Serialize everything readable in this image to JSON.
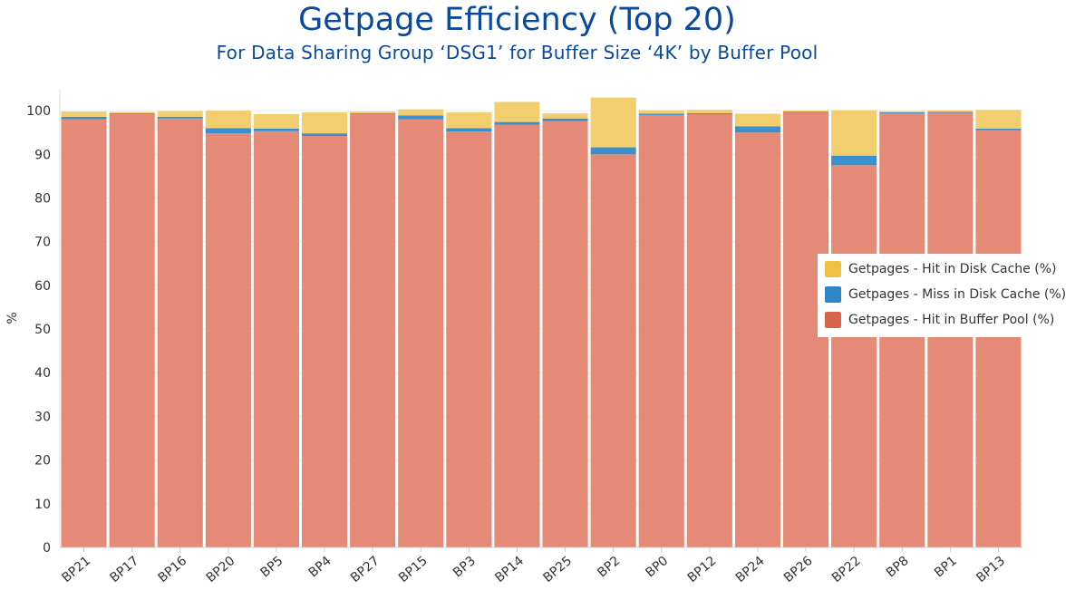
{
  "chart_data": {
    "type": "bar",
    "stacked": true,
    "title": "Getpage Efficiency (Top 20)",
    "subtitle": "For Data Sharing Group ‘DSG1’ for Buffer Size ‘4K’ by Buffer Pool",
    "ylabel": "%",
    "xlabel": "",
    "ylim": [
      0,
      105
    ],
    "yticks": [
      0,
      10,
      20,
      30,
      40,
      50,
      60,
      70,
      80,
      90,
      100
    ],
    "grid": true,
    "legend_position": "right",
    "categories": [
      "BP21",
      "BP17",
      "BP16",
      "BP20",
      "BP5",
      "BP4",
      "BP27",
      "BP15",
      "BP3",
      "BP14",
      "BP25",
      "BP2",
      "BP0",
      "BP12",
      "BP24",
      "BP26",
      "BP22",
      "BP8",
      "BP1",
      "BP13"
    ],
    "series": [
      {
        "name": "Getpages - Hit in Buffer Pool (%)",
        "color": "#e48a76",
        "values": [
          98.0,
          99.3,
          98.2,
          94.8,
          95.3,
          94.2,
          99.3,
          98.0,
          95.2,
          96.8,
          97.6,
          90.0,
          99.0,
          99.2,
          95.0,
          99.7,
          87.5,
          99.4,
          99.5,
          95.5
        ]
      },
      {
        "name": "Getpages - Miss in Disk Cache (%)",
        "color": "#3a8fcc",
        "values": [
          0.6,
          0.1,
          0.4,
          1.2,
          0.6,
          0.6,
          0.1,
          0.9,
          0.8,
          0.6,
          0.6,
          1.6,
          0.3,
          0.2,
          1.4,
          0.1,
          2.2,
          0.2,
          0.2,
          0.4
        ]
      },
      {
        "name": "Getpages - Hit in Disk Cache (%)",
        "color": "#f2ce6e",
        "values": [
          1.2,
          0.3,
          1.3,
          4.0,
          3.3,
          4.8,
          0.4,
          1.4,
          3.6,
          4.6,
          1.2,
          11.4,
          0.8,
          0.8,
          2.9,
          0.2,
          10.4,
          0.3,
          0.4,
          4.3
        ]
      }
    ],
    "legend_order": [
      "Getpages - Hit in Disk Cache (%)",
      "Getpages - Miss in Disk Cache (%)",
      "Getpages - Hit in Buffer Pool (%)"
    ],
    "legend_colors": [
      "#f0c040",
      "#2e86c8",
      "#d9644c"
    ]
  }
}
